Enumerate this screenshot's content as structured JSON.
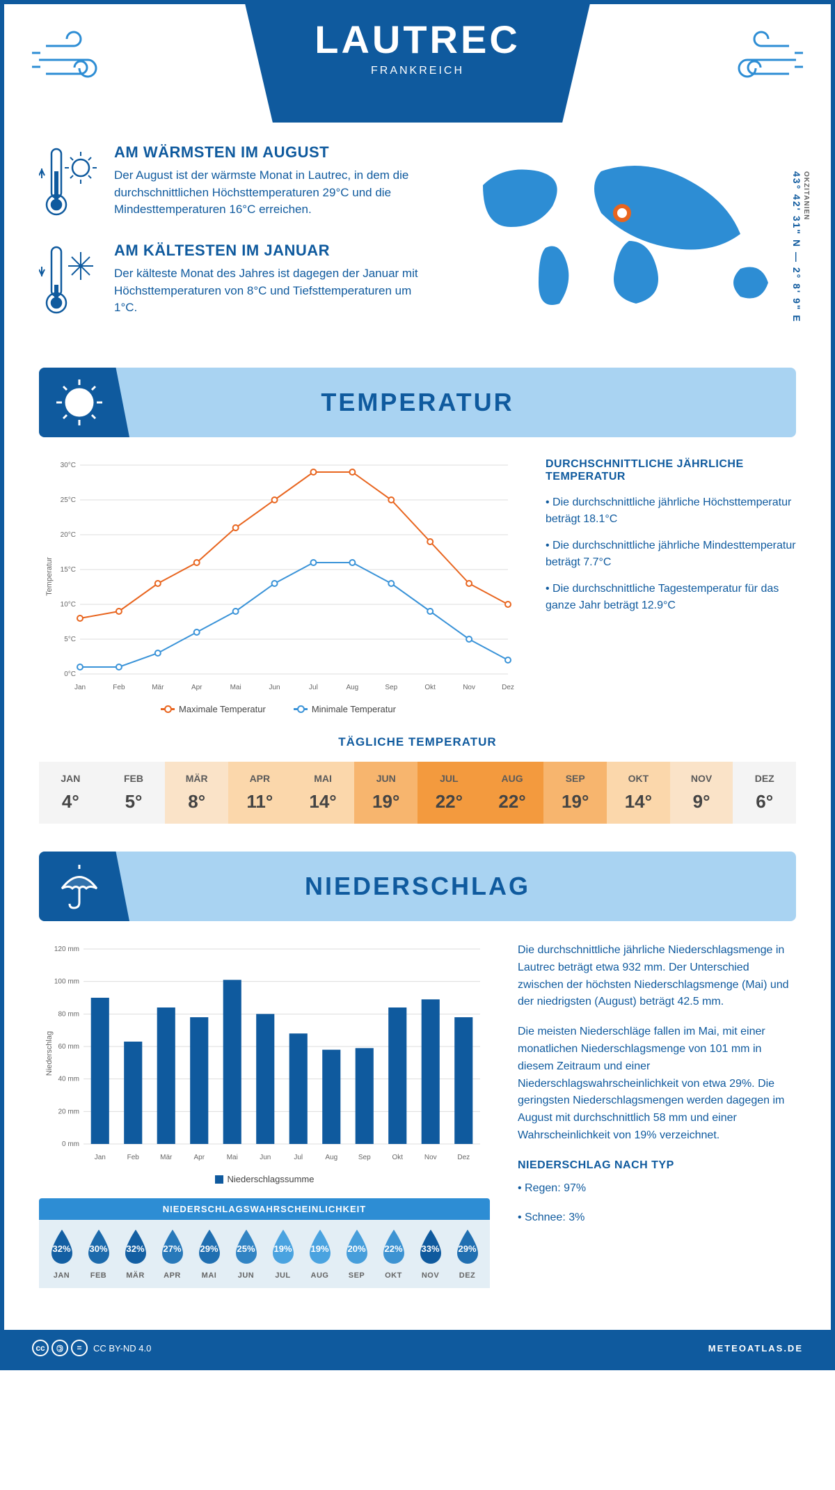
{
  "header": {
    "title": "LAUTREC",
    "subtitle": "FRANKREICH"
  },
  "coords": {
    "main": "43° 42' 31\" N — 2° 8' 9\" E",
    "region": "OKZITANIEN"
  },
  "warmest": {
    "heading": "AM WÄRMSTEN IM AUGUST",
    "text": "Der August ist der wärmste Monat in Lautrec, in dem die durchschnittlichen Höchsttemperaturen 29°C und die Mindesttemperaturen 16°C erreichen."
  },
  "coldest": {
    "heading": "AM KÄLTESTEN IM JANUAR",
    "text": "Der kälteste Monat des Jahres ist dagegen der Januar mit Höchsttemperaturen von 8°C und Tiefsttemperaturen um 1°C."
  },
  "section_temp": "TEMPERATUR",
  "section_precip": "NIEDERSCHLAG",
  "months": [
    "Jan",
    "Feb",
    "Mär",
    "Apr",
    "Mai",
    "Jun",
    "Jul",
    "Aug",
    "Sep",
    "Okt",
    "Nov",
    "Dez"
  ],
  "months_uc": [
    "JAN",
    "FEB",
    "MÄR",
    "APR",
    "MAI",
    "JUN",
    "JUL",
    "AUG",
    "SEP",
    "OKT",
    "NOV",
    "DEZ"
  ],
  "temp_chart": {
    "type": "line",
    "ylabel": "Temperatur",
    "ylim": [
      0,
      30
    ],
    "ytick_step": 5,
    "ytick_labels": [
      "0°C",
      "5°C",
      "10°C",
      "15°C",
      "20°C",
      "25°C",
      "30°C"
    ],
    "line_width": 2,
    "marker": "circle",
    "marker_size": 4,
    "grid_color": "#dddddd",
    "background_color": "#ffffff",
    "series": {
      "max": {
        "label": "Maximale Temperatur",
        "color": "#e8651f",
        "values": [
          8,
          9,
          13,
          16,
          21,
          25,
          29,
          29,
          25,
          19,
          13,
          10
        ]
      },
      "min": {
        "label": "Minimale Temperatur",
        "color": "#3a93d8",
        "values": [
          1,
          1,
          3,
          6,
          9,
          13,
          16,
          16,
          13,
          9,
          5,
          2
        ]
      }
    }
  },
  "temp_facts": {
    "heading": "DURCHSCHNITTLICHE JÄHRLICHE TEMPERATUR",
    "b1": "• Die durchschnittliche jährliche Höchsttemperatur beträgt 18.1°C",
    "b2": "• Die durchschnittliche jährliche Mindesttemperatur beträgt 7.7°C",
    "b3": "• Die durchschnittliche Tagestemperatur für das ganze Jahr beträgt 12.9°C"
  },
  "daily_temp": {
    "heading": "TÄGLICHE TEMPERATUR",
    "values": [
      4,
      5,
      8,
      11,
      14,
      19,
      22,
      22,
      19,
      14,
      9,
      6
    ],
    "bg_colors": [
      "#f4f4f4",
      "#f4f4f4",
      "#fae3c8",
      "#fbd7ab",
      "#fbd7ab",
      "#f7b56e",
      "#f39a3e",
      "#f39a3e",
      "#f7b56e",
      "#fbd7ab",
      "#fae3c8",
      "#f4f4f4"
    ]
  },
  "precip_chart": {
    "type": "bar",
    "ylabel": "Niederschlag",
    "legend": "Niederschlagssumme",
    "ylim": [
      0,
      120
    ],
    "ytick_step": 20,
    "ytick_labels": [
      "0 mm",
      "20 mm",
      "40 mm",
      "60 mm",
      "80 mm",
      "100 mm",
      "120 mm"
    ],
    "bar_color": "#0f5a9e",
    "bar_width": 0.55,
    "grid_color": "#dddddd",
    "values": [
      90,
      63,
      84,
      78,
      101,
      80,
      68,
      58,
      59,
      84,
      89,
      78
    ]
  },
  "precip_text": {
    "p1": "Die durchschnittliche jährliche Niederschlagsmenge in Lautrec beträgt etwa 932 mm. Der Unterschied zwischen der höchsten Niederschlagsmenge (Mai) und der niedrigsten (August) beträgt 42.5 mm.",
    "p2": "Die meisten Niederschläge fallen im Mai, mit einer monatlichen Niederschlagsmenge von 101 mm in diesem Zeitraum und einer Niederschlagswahrscheinlichkeit von etwa 29%. Die geringsten Niederschlagsmengen werden dagegen im August mit durchschnittlich 58 mm und einer Wahrscheinlichkeit von 19% verzeichnet.",
    "type_heading": "NIEDERSCHLAG NACH TYP",
    "rain": "• Regen: 97%",
    "snow": "• Schnee: 3%"
  },
  "precip_prob": {
    "heading": "NIEDERSCHLAGSWAHRSCHEINLICHKEIT",
    "values": [
      32,
      30,
      32,
      27,
      29,
      25,
      19,
      19,
      20,
      22,
      33,
      29
    ],
    "drop_color_dark": "#0f5a9e",
    "drop_color_light": "#4aa3e0"
  },
  "footer": {
    "license": "CC BY-ND 4.0",
    "site": "METEOATLAS.DE"
  },
  "colors": {
    "primary": "#0f5a9e",
    "banner_bg": "#a9d3f2",
    "orange": "#e8651f",
    "blue_line": "#3a93d8"
  }
}
